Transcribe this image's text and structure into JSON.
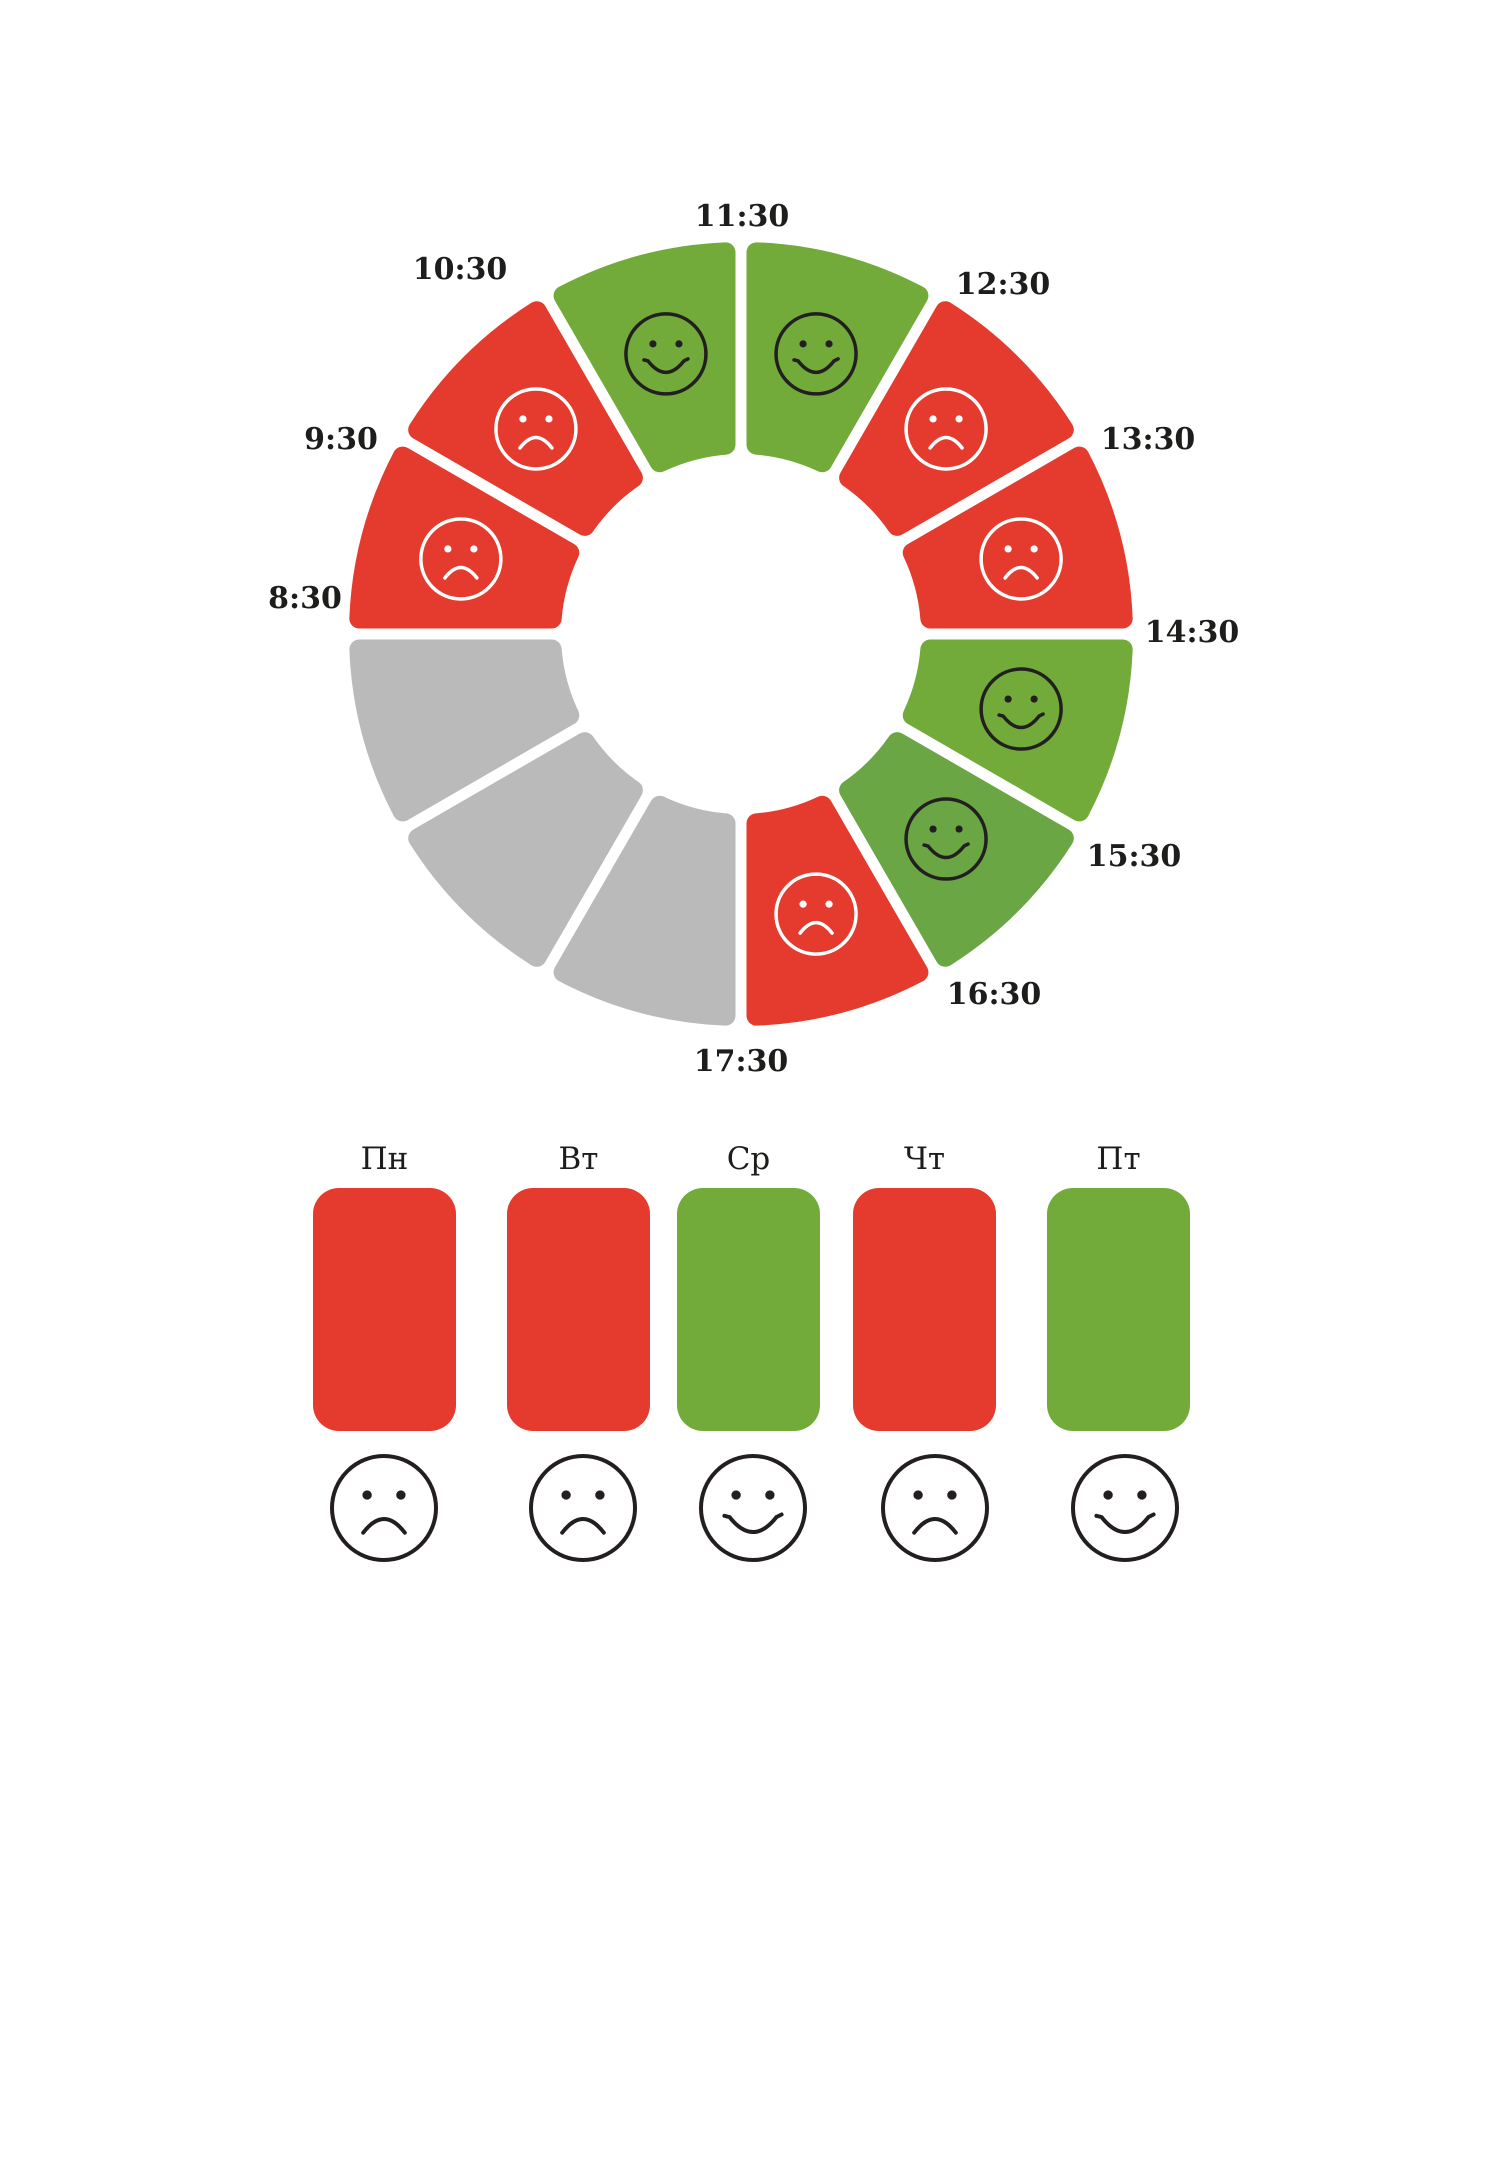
{
  "colors": {
    "sad": "#e43b2e",
    "happy": "#72ab3a",
    "happy_alt": "#6ba644",
    "empty": "#bababa",
    "ink": "#231f20"
  },
  "chart_data": [
    {
      "type": "pie",
      "title": "",
      "labels": [
        "11:30",
        "12:30",
        "13:30",
        "14:30",
        "15:30",
        "16:30",
        "17:30",
        "8:30",
        "9:30",
        "10:30"
      ],
      "slots": [
        {
          "from": "11:30",
          "to": "12:30",
          "mood": "happy"
        },
        {
          "from": "12:30",
          "to": "13:30",
          "mood": "sad"
        },
        {
          "from": "13:30",
          "to": "14:30",
          "mood": "sad"
        },
        {
          "from": "14:30",
          "to": "15:30",
          "mood": "happy"
        },
        {
          "from": "15:30",
          "to": "16:30",
          "mood": "happy_alt"
        },
        {
          "from": "16:30",
          "to": "17:30",
          "mood": "sad"
        },
        {
          "from": "17:30",
          "to": "",
          "mood": "empty"
        },
        {
          "from": "",
          "to": "",
          "mood": "empty"
        },
        {
          "from": "",
          "to": "8:30",
          "mood": "empty"
        },
        {
          "from": "8:30",
          "to": "9:30",
          "mood": "sad"
        },
        {
          "from": "9:30",
          "to": "10:30",
          "mood": "sad"
        },
        {
          "from": "10:30",
          "to": "11:30",
          "mood": "happy"
        }
      ]
    },
    {
      "type": "bar",
      "categories": [
        "Пн",
        "Вт",
        "Ср",
        "Чт",
        "Пт"
      ],
      "moods": [
        "sad",
        "sad",
        "happy",
        "sad",
        "happy"
      ]
    }
  ]
}
